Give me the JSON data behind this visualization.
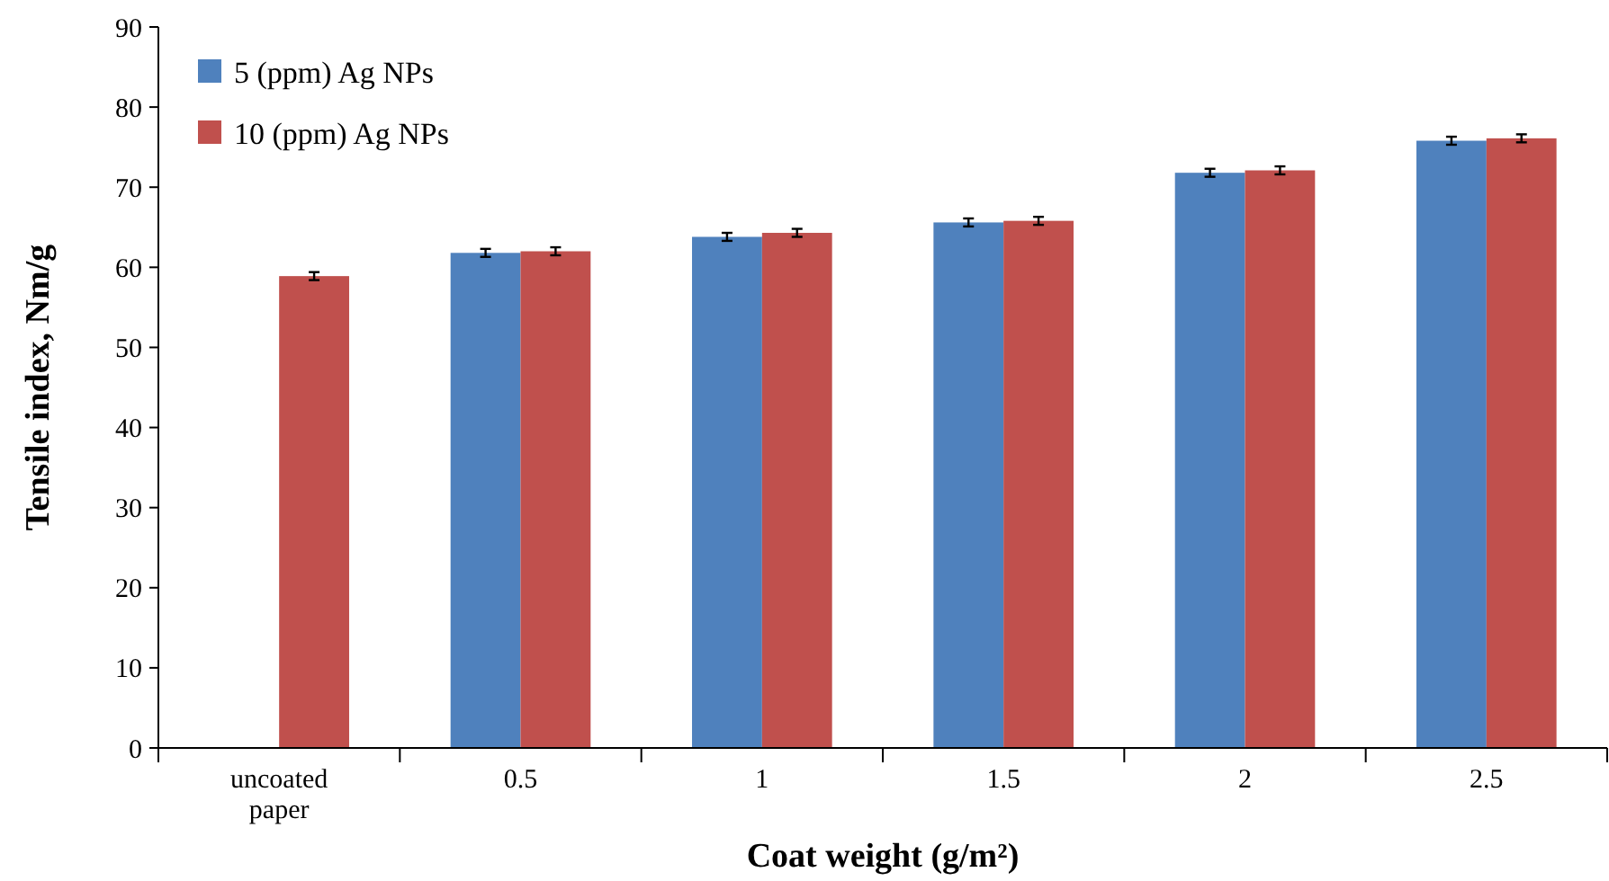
{
  "chart_data": {
    "type": "bar",
    "xlabel": "Coat weight (g/m²)",
    "ylabel": "Tensile index, Nm/g",
    "categories": [
      "uncoated paper",
      "0.5",
      "1",
      "1.5",
      "2",
      "2.5"
    ],
    "series": [
      {
        "name": "5 (ppm) Ag NPs",
        "color": "#4f81bd",
        "values": [
          null,
          61.8,
          63.8,
          65.6,
          71.8,
          75.8
        ],
        "errors": [
          null,
          0.5,
          0.5,
          0.5,
          0.5,
          0.5
        ]
      },
      {
        "name": "10 (ppm) Ag NPs",
        "color": "#c0504d",
        "values": [
          58.9,
          62.0,
          64.3,
          65.8,
          72.1,
          76.1
        ],
        "errors": [
          0.5,
          0.5,
          0.5,
          0.5,
          0.5,
          0.5
        ]
      }
    ],
    "ylim": [
      0,
      90
    ],
    "yticks": [
      0,
      10,
      20,
      30,
      40,
      50,
      60,
      70,
      80,
      90
    ],
    "grid": false,
    "legend": "top left"
  }
}
